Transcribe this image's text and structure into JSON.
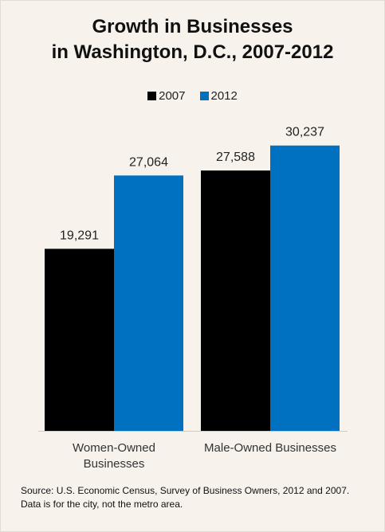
{
  "chart_data": {
    "type": "bar",
    "title_lines": [
      "Growth in Businesses",
      "in Washington, D.C., 2007-2012"
    ],
    "categories": [
      "Women-Owned Businesses",
      "Male-Owned Businesses"
    ],
    "category_lines": [
      [
        "Women-Owned",
        "Businesses"
      ],
      [
        "Male-Owned Businesses"
      ]
    ],
    "series": [
      {
        "name": "2007",
        "color": "#000000",
        "values": [
          19291,
          27588
        ],
        "labels": [
          "19,291",
          "27,588"
        ]
      },
      {
        "name": "2012",
        "color": "#0070c0",
        "values": [
          27064,
          30237
        ],
        "labels": [
          "27,064",
          "30,237"
        ]
      }
    ],
    "ylim": [
      0,
      33000
    ],
    "xlabel": "",
    "ylabel": "",
    "grid": false,
    "legend_position": "top-center"
  },
  "source": "Source: U.S. Economic Census, Survey of Business Owners, 2012 and 2007. Data is for the city, not the metro area."
}
